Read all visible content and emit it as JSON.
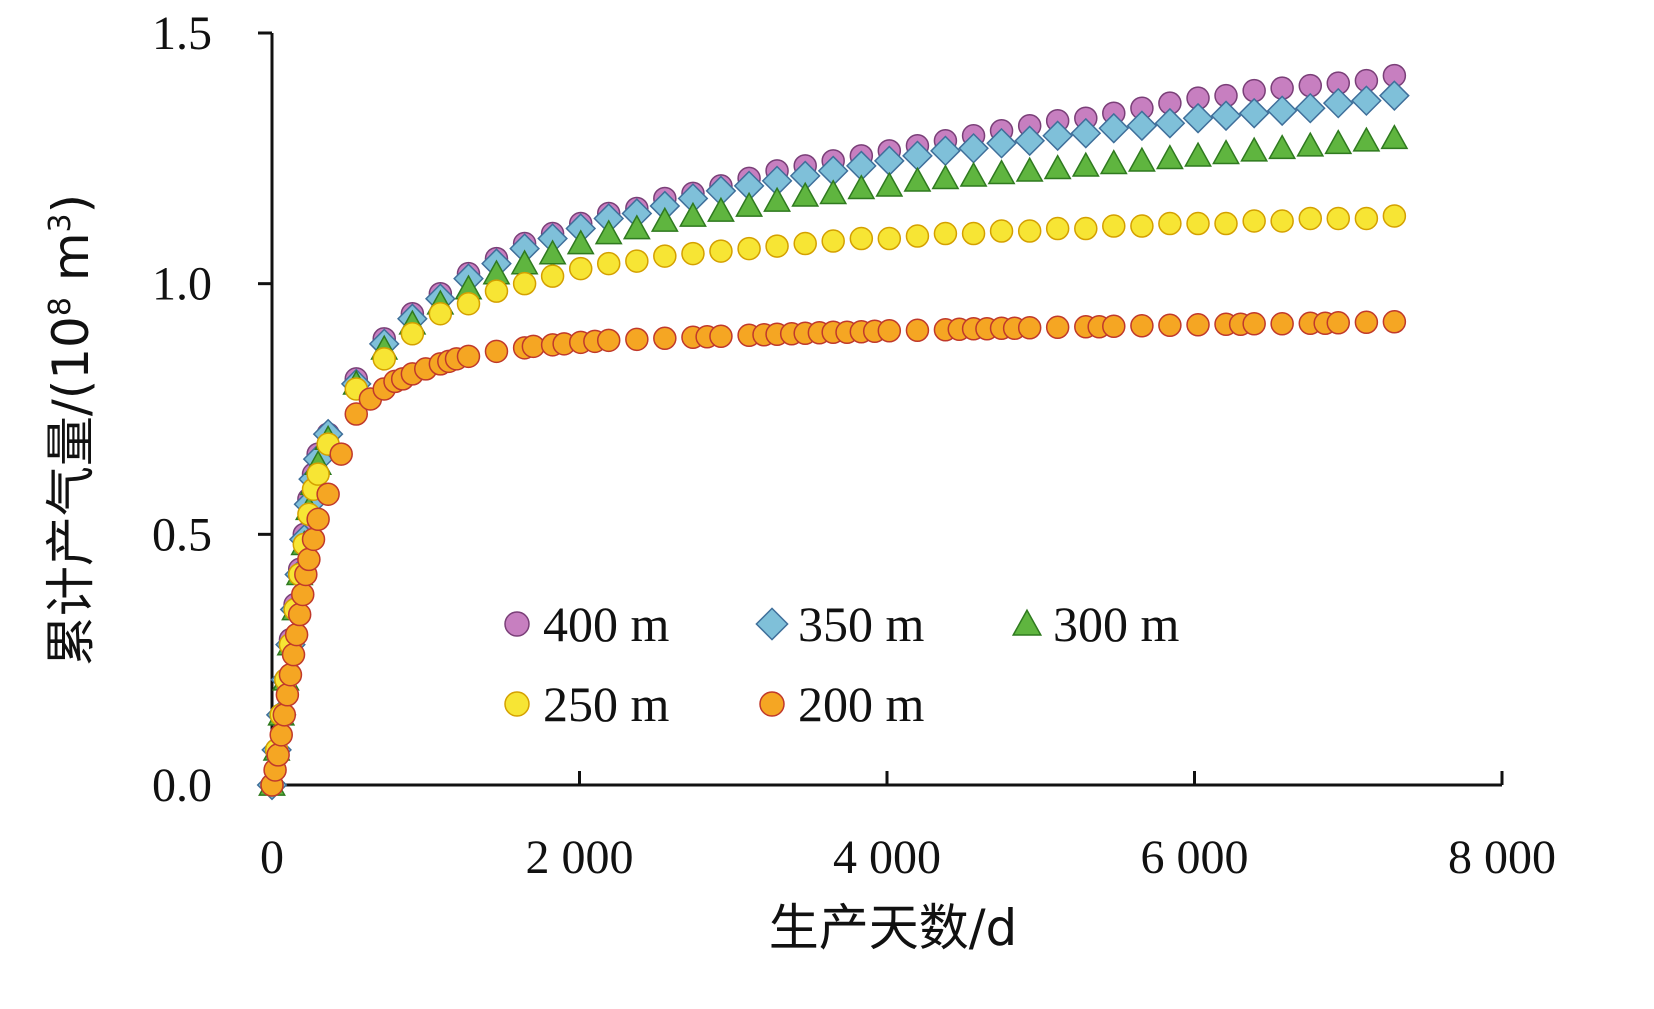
{
  "chart_data": {
    "type": "scatter",
    "xlabel": "生产天数/d",
    "ylabel_prefix": "累计产气量/(10",
    "ylabel_sup1": "8",
    "ylabel_mid": " m",
    "ylabel_sup2": "3",
    "ylabel_suffix": ")",
    "xlim": [
      0,
      8000
    ],
    "ylim": [
      0,
      1.5
    ],
    "x_ticks": [
      0,
      2000,
      4000,
      6000,
      8000
    ],
    "x_tick_labels": [
      "0",
      "2 000",
      "4 000",
      "6 000",
      "8 000"
    ],
    "y_ticks": [
      0,
      0.5,
      1.0,
      1.5
    ],
    "y_tick_labels": [
      "0.0",
      "0.5",
      "1.0",
      "1.5"
    ],
    "grid": false,
    "legend_position": "center",
    "series": [
      {
        "name": "400 m",
        "marker": "circle",
        "fill": "#c77fc0",
        "stroke": "#7a3f78",
        "x": [
          0,
          30,
          60,
          90,
          120,
          150,
          180,
          210,
          240,
          270,
          300,
          365,
          548,
          730,
          913,
          1095,
          1278,
          1460,
          1643,
          1825,
          2008,
          2190,
          2373,
          2555,
          2738,
          2920,
          3103,
          3285,
          3468,
          3650,
          3833,
          4015,
          4198,
          4380,
          4563,
          4745,
          4928,
          5110,
          5293,
          5475,
          5658,
          5840,
          6023,
          6205,
          6388,
          6570,
          6753,
          6935,
          7118,
          7300
        ],
        "y": [
          0,
          0.07,
          0.14,
          0.21,
          0.29,
          0.36,
          0.43,
          0.5,
          0.57,
          0.62,
          0.66,
          0.7,
          0.81,
          0.89,
          0.94,
          0.98,
          1.02,
          1.05,
          1.08,
          1.1,
          1.12,
          1.14,
          1.15,
          1.17,
          1.18,
          1.195,
          1.21,
          1.225,
          1.235,
          1.245,
          1.255,
          1.265,
          1.275,
          1.285,
          1.295,
          1.305,
          1.315,
          1.325,
          1.33,
          1.34,
          1.35,
          1.36,
          1.37,
          1.375,
          1.385,
          1.39,
          1.395,
          1.4,
          1.405,
          1.415
        ]
      },
      {
        "name": "350 m",
        "marker": "diamond",
        "fill": "#7fc0d9",
        "stroke": "#3f6f9a",
        "x": [
          0,
          30,
          60,
          90,
          120,
          150,
          180,
          210,
          240,
          270,
          300,
          365,
          548,
          730,
          913,
          1095,
          1278,
          1460,
          1643,
          1825,
          2008,
          2190,
          2373,
          2555,
          2738,
          2920,
          3103,
          3285,
          3468,
          3650,
          3833,
          4015,
          4198,
          4380,
          4563,
          4745,
          4928,
          5110,
          5293,
          5475,
          5658,
          5840,
          6023,
          6205,
          6388,
          6570,
          6753,
          6935,
          7118,
          7300
        ],
        "y": [
          0,
          0.07,
          0.14,
          0.21,
          0.28,
          0.35,
          0.42,
          0.49,
          0.56,
          0.61,
          0.65,
          0.7,
          0.8,
          0.88,
          0.93,
          0.97,
          1.01,
          1.04,
          1.07,
          1.09,
          1.11,
          1.13,
          1.14,
          1.155,
          1.17,
          1.185,
          1.195,
          1.205,
          1.215,
          1.225,
          1.235,
          1.245,
          1.255,
          1.265,
          1.27,
          1.28,
          1.285,
          1.295,
          1.3,
          1.31,
          1.315,
          1.32,
          1.33,
          1.335,
          1.34,
          1.345,
          1.35,
          1.36,
          1.365,
          1.375
        ]
      },
      {
        "name": "300 m",
        "marker": "triangle",
        "fill": "#5fb53f",
        "stroke": "#2f7a1f",
        "x": [
          0,
          30,
          60,
          90,
          120,
          150,
          180,
          210,
          240,
          270,
          300,
          365,
          548,
          730,
          913,
          1095,
          1278,
          1460,
          1643,
          1825,
          2008,
          2190,
          2373,
          2555,
          2738,
          2920,
          3103,
          3285,
          3468,
          3650,
          3833,
          4015,
          4198,
          4380,
          4563,
          4745,
          4928,
          5110,
          5293,
          5475,
          5658,
          5840,
          6023,
          6205,
          6388,
          6570,
          6753,
          6935,
          7118,
          7300
        ],
        "y": [
          0,
          0.07,
          0.14,
          0.21,
          0.28,
          0.35,
          0.42,
          0.48,
          0.55,
          0.6,
          0.64,
          0.69,
          0.8,
          0.87,
          0.92,
          0.96,
          0.99,
          1.02,
          1.04,
          1.06,
          1.08,
          1.1,
          1.11,
          1.125,
          1.135,
          1.145,
          1.155,
          1.165,
          1.175,
          1.18,
          1.19,
          1.195,
          1.205,
          1.21,
          1.215,
          1.22,
          1.225,
          1.23,
          1.235,
          1.24,
          1.245,
          1.25,
          1.255,
          1.26,
          1.265,
          1.27,
          1.275,
          1.28,
          1.285,
          1.29
        ]
      },
      {
        "name": "250 m",
        "marker": "circle",
        "fill": "#f7e534",
        "stroke": "#d4a000",
        "x": [
          0,
          30,
          60,
          90,
          120,
          150,
          180,
          210,
          240,
          270,
          300,
          365,
          548,
          730,
          913,
          1095,
          1278,
          1460,
          1643,
          1825,
          2008,
          2190,
          2373,
          2555,
          2738,
          2920,
          3103,
          3285,
          3468,
          3650,
          3833,
          4015,
          4198,
          4380,
          4563,
          4745,
          4928,
          5110,
          5293,
          5475,
          5658,
          5840,
          6023,
          6205,
          6388,
          6570,
          6753,
          6935,
          7118,
          7300
        ],
        "y": [
          0,
          0.07,
          0.14,
          0.21,
          0.28,
          0.35,
          0.42,
          0.48,
          0.54,
          0.59,
          0.62,
          0.68,
          0.79,
          0.85,
          0.9,
          0.94,
          0.96,
          0.985,
          1.0,
          1.015,
          1.03,
          1.04,
          1.045,
          1.055,
          1.06,
          1.065,
          1.07,
          1.075,
          1.08,
          1.085,
          1.09,
          1.09,
          1.095,
          1.1,
          1.1,
          1.105,
          1.105,
          1.11,
          1.11,
          1.115,
          1.115,
          1.12,
          1.12,
          1.12,
          1.125,
          1.125,
          1.13,
          1.13,
          1.13,
          1.135
        ]
      },
      {
        "name": "200 m",
        "marker": "circle",
        "fill": "#f5a623",
        "stroke": "#c0392b",
        "x": [
          0,
          20,
          40,
          60,
          80,
          100,
          120,
          140,
          160,
          180,
          200,
          220,
          240,
          270,
          300,
          365,
          450,
          548,
          640,
          730,
          800,
          850,
          913,
          1000,
          1095,
          1150,
          1200,
          1278,
          1460,
          1643,
          1700,
          1825,
          1900,
          2008,
          2100,
          2190,
          2373,
          2555,
          2738,
          2830,
          2920,
          3103,
          3200,
          3285,
          3380,
          3468,
          3560,
          3650,
          3740,
          3833,
          3920,
          4015,
          4198,
          4380,
          4470,
          4563,
          4650,
          4745,
          4830,
          4928,
          5110,
          5293,
          5380,
          5475,
          5658,
          5840,
          6023,
          6205,
          6300,
          6388,
          6570,
          6753,
          6850,
          6935,
          7118,
          7300
        ],
        "y": [
          0,
          0.03,
          0.06,
          0.1,
          0.14,
          0.18,
          0.22,
          0.26,
          0.3,
          0.34,
          0.38,
          0.42,
          0.45,
          0.49,
          0.53,
          0.58,
          0.66,
          0.74,
          0.77,
          0.79,
          0.805,
          0.81,
          0.82,
          0.83,
          0.84,
          0.845,
          0.85,
          0.855,
          0.865,
          0.872,
          0.875,
          0.878,
          0.88,
          0.883,
          0.885,
          0.887,
          0.889,
          0.891,
          0.893,
          0.894,
          0.895,
          0.897,
          0.898,
          0.899,
          0.9,
          0.901,
          0.902,
          0.903,
          0.903,
          0.904,
          0.905,
          0.906,
          0.907,
          0.908,
          0.909,
          0.91,
          0.91,
          0.911,
          0.911,
          0.912,
          0.913,
          0.914,
          0.914,
          0.915,
          0.916,
          0.917,
          0.918,
          0.919,
          0.919,
          0.92,
          0.92,
          0.921,
          0.921,
          0.922,
          0.923,
          0.924
        ]
      }
    ]
  }
}
